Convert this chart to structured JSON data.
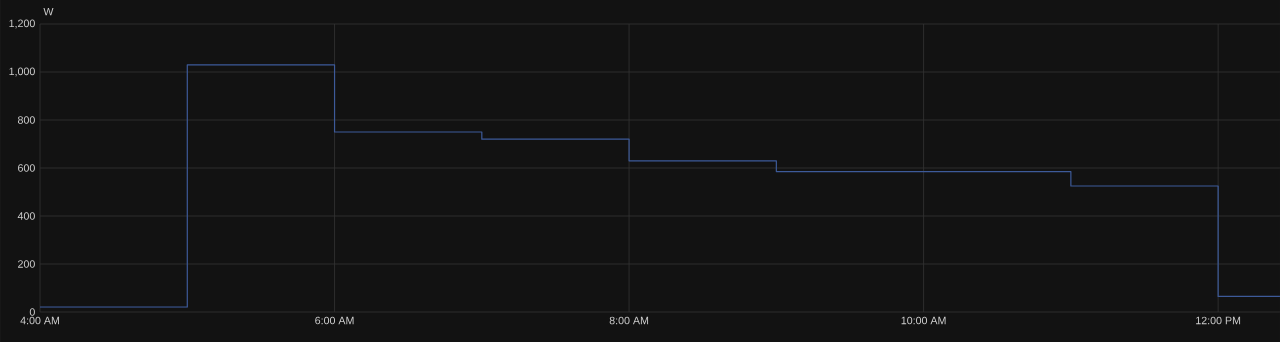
{
  "chart_data": {
    "type": "step",
    "ylabel": "W",
    "x": [
      4,
      5,
      6,
      7,
      8,
      9,
      11,
      12,
      12.42
    ],
    "series": [
      {
        "color": "#3d5a99",
        "values": [
          20,
          1030,
          750,
          720,
          630,
          585,
          525,
          65,
          65
        ]
      }
    ],
    "xlim": [
      4,
      12.42
    ],
    "xticks": [
      {
        "value": 4,
        "label": "4:00 AM"
      },
      {
        "value": 6,
        "label": "6:00 AM"
      },
      {
        "value": 8,
        "label": "8:00 AM"
      },
      {
        "value": 10,
        "label": "10:00 AM"
      },
      {
        "value": 12,
        "label": "12:00 PM"
      }
    ],
    "ylim": [
      0,
      1200
    ],
    "yticks": [
      0,
      200,
      400,
      600,
      800,
      {
        "value": 1000,
        "label": "1,000"
      },
      {
        "value": 1200,
        "label": "1,200"
      }
    ],
    "grid": true
  }
}
